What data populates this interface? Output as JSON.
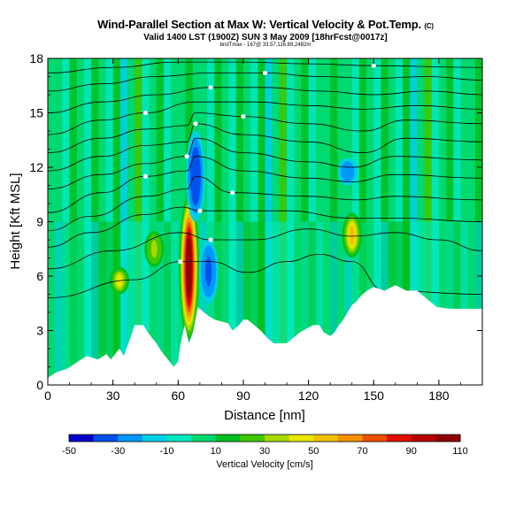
{
  "chart_data": {
    "type": "heatmap",
    "title": "Wind-Parallel Section at Max W: Vertical Velocity & Pot.Temp.",
    "title_units": "(C)",
    "subtitle": "Valid 1400 LST (1900Z) SUN 3 May 2009 [18hrFcst@0017z]",
    "subtitle_small": "bndTmax - 167@ 33.57,116.69,2482m",
    "xlabel": "Distance [nm]",
    "ylabel": "Height [Kft MSL]",
    "xlim": [
      0,
      200
    ],
    "ylim": [
      0,
      18
    ],
    "xticks": [
      0,
      30,
      60,
      90,
      120,
      150,
      180
    ],
    "yticks": [
      0,
      3,
      6,
      9,
      12,
      15,
      18
    ],
    "colorbar": {
      "label": "Vertical Velocity [cm/s]",
      "ticks": [
        -50,
        -30,
        -10,
        10,
        30,
        50,
        70,
        90,
        110
      ],
      "min": -50,
      "max": 110,
      "colors": [
        "#0000cc",
        "#0050ee",
        "#0098f8",
        "#00d0e8",
        "#00e8c0",
        "#00d870",
        "#00c020",
        "#40c800",
        "#a8d800",
        "#e8e800",
        "#f0c000",
        "#f89000",
        "#f05000",
        "#e01000",
        "#b80000",
        "#900000"
      ]
    },
    "terrain": [
      {
        "x": 0,
        "z": 0.4
      },
      {
        "x": 4,
        "z": 0.7
      },
      {
        "x": 9,
        "z": 0.9
      },
      {
        "x": 14,
        "z": 1.3
      },
      {
        "x": 18,
        "z": 1.6
      },
      {
        "x": 23,
        "z": 1.4
      },
      {
        "x": 27,
        "z": 1.7
      },
      {
        "x": 29,
        "z": 1.4
      },
      {
        "x": 31,
        "z": 1.7
      },
      {
        "x": 33,
        "z": 2.0
      },
      {
        "x": 35,
        "z": 1.6
      },
      {
        "x": 38,
        "z": 2.6
      },
      {
        "x": 40,
        "z": 3.3
      },
      {
        "x": 44,
        "z": 3.3
      },
      {
        "x": 46,
        "z": 2.9
      },
      {
        "x": 48,
        "z": 2.6
      },
      {
        "x": 50,
        "z": 2.3
      },
      {
        "x": 52,
        "z": 1.9
      },
      {
        "x": 54,
        "z": 1.6
      },
      {
        "x": 56,
        "z": 1.3
      },
      {
        "x": 58,
        "z": 1.0
      },
      {
        "x": 60,
        "z": 1.3
      },
      {
        "x": 61,
        "z": 2.2
      },
      {
        "x": 63,
        "z": 3.3
      },
      {
        "x": 65,
        "z": 2.3
      },
      {
        "x": 67,
        "z": 3.0
      },
      {
        "x": 69,
        "z": 4.3
      },
      {
        "x": 71,
        "z": 4.1
      },
      {
        "x": 74,
        "z": 3.8
      },
      {
        "x": 77,
        "z": 3.6
      },
      {
        "x": 80,
        "z": 3.5
      },
      {
        "x": 83,
        "z": 3.4
      },
      {
        "x": 85,
        "z": 3.0
      },
      {
        "x": 88,
        "z": 3.3
      },
      {
        "x": 90,
        "z": 3.6
      },
      {
        "x": 92,
        "z": 3.6
      },
      {
        "x": 95,
        "z": 3.3
      },
      {
        "x": 98,
        "z": 3.0
      },
      {
        "x": 101,
        "z": 2.6
      },
      {
        "x": 104,
        "z": 2.3
      },
      {
        "x": 107,
        "z": 2.3
      },
      {
        "x": 110,
        "z": 2.3
      },
      {
        "x": 113,
        "z": 2.6
      },
      {
        "x": 116,
        "z": 2.9
      },
      {
        "x": 119,
        "z": 3.1
      },
      {
        "x": 122,
        "z": 3.3
      },
      {
        "x": 125,
        "z": 3.3
      },
      {
        "x": 127,
        "z": 2.9
      },
      {
        "x": 130,
        "z": 2.7
      },
      {
        "x": 132,
        "z": 2.9
      },
      {
        "x": 134,
        "z": 3.3
      },
      {
        "x": 136,
        "z": 3.6
      },
      {
        "x": 138,
        "z": 4.0
      },
      {
        "x": 140,
        "z": 4.4
      },
      {
        "x": 142,
        "z": 4.6
      },
      {
        "x": 144,
        "z": 4.9
      },
      {
        "x": 147,
        "z": 5.2
      },
      {
        "x": 150,
        "z": 5.4
      },
      {
        "x": 155,
        "z": 5.2
      },
      {
        "x": 160,
        "z": 5.5
      },
      {
        "x": 165,
        "z": 5.2
      },
      {
        "x": 170,
        "z": 5.2
      },
      {
        "x": 173,
        "z": 4.9
      },
      {
        "x": 176,
        "z": 4.6
      },
      {
        "x": 179,
        "z": 4.3
      },
      {
        "x": 185,
        "z": 4.2
      },
      {
        "x": 200,
        "z": 4.2
      }
    ],
    "features": [
      {
        "type": "updraft",
        "x": 65,
        "zmin": 2.5,
        "zmax": 10.5,
        "w": 110
      },
      {
        "type": "downdraft",
        "x": 68,
        "zmin": 9.0,
        "zmax": 14.0,
        "w": -40
      },
      {
        "type": "downdraft",
        "x": 74,
        "zmin": 4.5,
        "zmax": 8.0,
        "w": -35
      },
      {
        "type": "updraft",
        "x": 33,
        "zmin": 5.0,
        "zmax": 6.5,
        "w": 40
      },
      {
        "type": "updraft",
        "x": 140,
        "zmin": 7.0,
        "zmax": 9.5,
        "w": 50
      },
      {
        "type": "downdraft",
        "x": 138,
        "zmin": 11.0,
        "zmax": 12.5,
        "w": -30
      },
      {
        "type": "updraft",
        "x": 49,
        "zmin": 6.5,
        "zmax": 8.5,
        "w": 35
      }
    ],
    "theta_contours": [
      [
        {
          "x": 0,
          "z": 4.8
        },
        {
          "x": 40,
          "z": 5.8
        },
        {
          "x": 61,
          "z": 6.8
        },
        {
          "x": 75,
          "z": 6.8
        },
        {
          "x": 92,
          "z": 6.2
        },
        {
          "x": 110,
          "z": 6.8
        },
        {
          "x": 125,
          "z": 7.2
        },
        {
          "x": 140,
          "z": 6.8
        },
        {
          "x": 155,
          "z": 5.2
        },
        {
          "x": 200,
          "z": 5.0
        }
      ],
      [
        {
          "x": 0,
          "z": 6.4
        },
        {
          "x": 30,
          "z": 7.4
        },
        {
          "x": 61,
          "z": 8.4
        },
        {
          "x": 75,
          "z": 8.0
        },
        {
          "x": 95,
          "z": 8.0
        },
        {
          "x": 120,
          "z": 8.6
        },
        {
          "x": 140,
          "z": 8.2
        },
        {
          "x": 160,
          "z": 8.4
        },
        {
          "x": 180,
          "z": 8.0
        },
        {
          "x": 200,
          "z": 7.4
        }
      ],
      [
        {
          "x": 0,
          "z": 7.6
        },
        {
          "x": 20,
          "z": 8.4
        },
        {
          "x": 45,
          "z": 9.4
        },
        {
          "x": 62,
          "z": 9.8
        },
        {
          "x": 70,
          "z": 9.6
        },
        {
          "x": 85,
          "z": 9.6
        },
        {
          "x": 110,
          "z": 9.6
        },
        {
          "x": 140,
          "z": 9.2
        },
        {
          "x": 160,
          "z": 9.2
        },
        {
          "x": 200,
          "z": 9.0
        }
      ],
      [
        {
          "x": 0,
          "z": 8.5
        },
        {
          "x": 20,
          "z": 9.3
        },
        {
          "x": 45,
          "z": 10.4
        },
        {
          "x": 64,
          "z": 10.8
        },
        {
          "x": 68,
          "z": 11.5
        },
        {
          "x": 85,
          "z": 10.6
        },
        {
          "x": 120,
          "z": 10.4
        },
        {
          "x": 142,
          "z": 10.2
        },
        {
          "x": 160,
          "z": 10.4
        },
        {
          "x": 200,
          "z": 10.2
        }
      ],
      [
        {
          "x": 0,
          "z": 9.5
        },
        {
          "x": 25,
          "z": 10.6
        },
        {
          "x": 45,
          "z": 11.5
        },
        {
          "x": 64,
          "z": 11.8
        },
        {
          "x": 68,
          "z": 12.6
        },
        {
          "x": 90,
          "z": 11.8
        },
        {
          "x": 120,
          "z": 11.4
        },
        {
          "x": 140,
          "z": 11.2
        },
        {
          "x": 160,
          "z": 11.6
        },
        {
          "x": 200,
          "z": 11.4
        }
      ],
      [
        {
          "x": 0,
          "z": 10.8
        },
        {
          "x": 25,
          "z": 11.6
        },
        {
          "x": 45,
          "z": 12.2
        },
        {
          "x": 64,
          "z": 12.6
        },
        {
          "x": 68,
          "z": 13.6
        },
        {
          "x": 90,
          "z": 12.8
        },
        {
          "x": 120,
          "z": 12.3
        },
        {
          "x": 140,
          "z": 12.0
        },
        {
          "x": 160,
          "z": 12.6
        },
        {
          "x": 200,
          "z": 12.4
        }
      ],
      [
        {
          "x": 0,
          "z": 11.8
        },
        {
          "x": 25,
          "z": 12.6
        },
        {
          "x": 45,
          "z": 13.2
        },
        {
          "x": 64,
          "z": 13.4
        },
        {
          "x": 68,
          "z": 14.4
        },
        {
          "x": 90,
          "z": 13.8
        },
        {
          "x": 120,
          "z": 13.4
        },
        {
          "x": 145,
          "z": 12.8
        },
        {
          "x": 165,
          "z": 13.6
        },
        {
          "x": 200,
          "z": 13.4
        }
      ],
      [
        {
          "x": 0,
          "z": 12.8
        },
        {
          "x": 25,
          "z": 13.6
        },
        {
          "x": 45,
          "z": 14.1
        },
        {
          "x": 64,
          "z": 14.3
        },
        {
          "x": 68,
          "z": 15.0
        },
        {
          "x": 90,
          "z": 14.8
        },
        {
          "x": 120,
          "z": 14.4
        },
        {
          "x": 145,
          "z": 14.0
        },
        {
          "x": 165,
          "z": 14.6
        },
        {
          "x": 200,
          "z": 14.4
        }
      ],
      [
        {
          "x": 0,
          "z": 13.8
        },
        {
          "x": 25,
          "z": 14.6
        },
        {
          "x": 45,
          "z": 15.0
        },
        {
          "x": 68,
          "z": 15.6
        },
        {
          "x": 95,
          "z": 15.6
        },
        {
          "x": 120,
          "z": 15.4
        },
        {
          "x": 145,
          "z": 15.2
        },
        {
          "x": 170,
          "z": 15.4
        },
        {
          "x": 200,
          "z": 15.2
        }
      ],
      [
        {
          "x": 0,
          "z": 15.0
        },
        {
          "x": 25,
          "z": 15.6
        },
        {
          "x": 50,
          "z": 16.0
        },
        {
          "x": 75,
          "z": 16.4
        },
        {
          "x": 100,
          "z": 16.4
        },
        {
          "x": 125,
          "z": 16.2
        },
        {
          "x": 150,
          "z": 16.0
        },
        {
          "x": 175,
          "z": 16.2
        },
        {
          "x": 200,
          "z": 16.0
        }
      ],
      [
        {
          "x": 0,
          "z": 16.2
        },
        {
          "x": 25,
          "z": 16.6
        },
        {
          "x": 50,
          "z": 17.0
        },
        {
          "x": 75,
          "z": 17.2
        },
        {
          "x": 100,
          "z": 17.2
        },
        {
          "x": 125,
          "z": 17.0
        },
        {
          "x": 150,
          "z": 16.9
        },
        {
          "x": 175,
          "z": 17.0
        },
        {
          "x": 200,
          "z": 16.8
        }
      ],
      [
        {
          "x": 0,
          "z": 17.2
        },
        {
          "x": 30,
          "z": 17.5
        },
        {
          "x": 60,
          "z": 17.8
        },
        {
          "x": 90,
          "z": 17.8
        },
        {
          "x": 120,
          "z": 17.7
        },
        {
          "x": 150,
          "z": 17.6
        },
        {
          "x": 200,
          "z": 17.5
        }
      ]
    ]
  }
}
